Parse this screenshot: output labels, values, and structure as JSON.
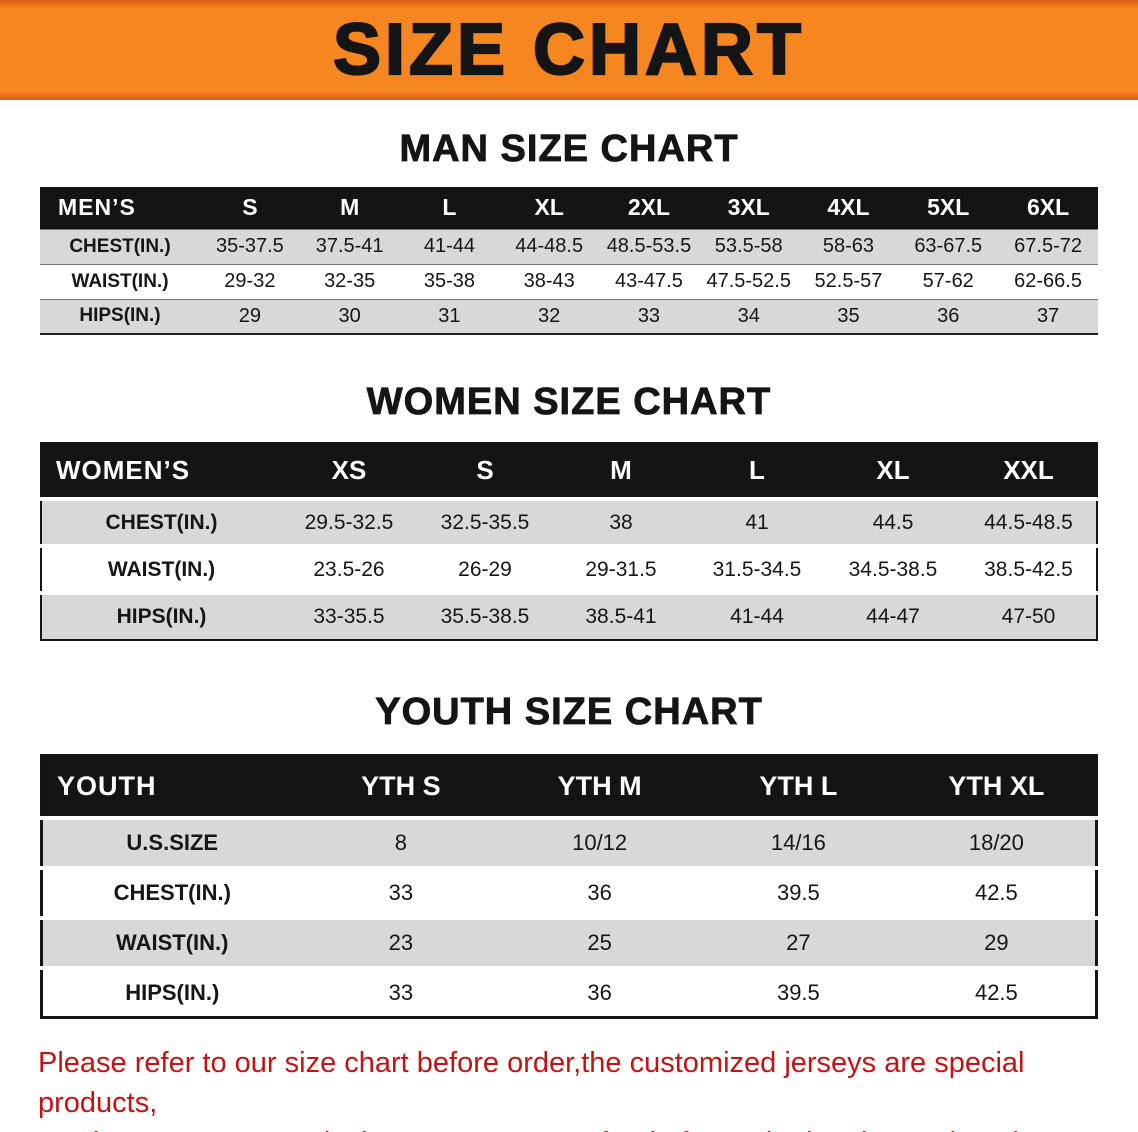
{
  "theme": {
    "banner_orange": "#f6861f",
    "header_black": "#141414",
    "row_gray": "#d8d8d8",
    "disclaimer_red": "#c11414",
    "title_black": "#151515"
  },
  "banner": {
    "title": "SIZE CHART"
  },
  "sections": [
    {
      "id": "men",
      "heading": "MAN SIZE CHART",
      "table": {
        "header_label": "MEN’S",
        "columns": [
          "S",
          "M",
          "L",
          "XL",
          "2XL",
          "3XL",
          "4XL",
          "5XL",
          "6XL"
        ],
        "rows": [
          {
            "label": "CHEST(IN.)",
            "values": [
              "35-37.5",
              "37.5-41",
              "41-44",
              "44-48.5",
              "48.5-53.5",
              "53.5-58",
              "58-63",
              "63-67.5",
              "67.5-72"
            ]
          },
          {
            "label": "WAIST(IN.)",
            "values": [
              "29-32",
              "32-35",
              "35-38",
              "38-43",
              "43-47.5",
              "47.5-52.5",
              "52.5-57",
              "57-62",
              "62-66.5"
            ]
          },
          {
            "label": "HIPS(IN.)",
            "values": [
              "29",
              "30",
              "31",
              "32",
              "33",
              "34",
              "35",
              "36",
              "37"
            ]
          }
        ]
      }
    },
    {
      "id": "women",
      "heading": "WOMEN SIZE CHART",
      "table": {
        "header_label": "WOMEN’S",
        "columns": [
          "XS",
          "S",
          "M",
          "L",
          "XL",
          "XXL"
        ],
        "rows": [
          {
            "label": "CHEST(IN.)",
            "values": [
              "29.5-32.5",
              "32.5-35.5",
              "38",
              "41",
              "44.5",
              "44.5-48.5"
            ]
          },
          {
            "label": "WAIST(IN.)",
            "values": [
              "23.5-26",
              "26-29",
              "29-31.5",
              "31.5-34.5",
              "34.5-38.5",
              "38.5-42.5"
            ]
          },
          {
            "label": "HIPS(IN.)",
            "values": [
              "33-35.5",
              "35.5-38.5",
              "38.5-41",
              "41-44",
              "44-47",
              "47-50"
            ]
          }
        ]
      }
    },
    {
      "id": "youth",
      "heading": "YOUTH SIZE CHART",
      "table": {
        "header_label": "YOUTH",
        "columns": [
          "YTH S",
          "YTH M",
          "YTH L",
          "YTH XL"
        ],
        "rows": [
          {
            "label": "U.S.SIZE",
            "values": [
              "8",
              "10/12",
              "14/16",
              "18/20"
            ]
          },
          {
            "label": "CHEST(IN.)",
            "values": [
              "33",
              "36",
              "39.5",
              "42.5"
            ]
          },
          {
            "label": "WAIST(IN.)",
            "values": [
              "23",
              "25",
              "27",
              "29"
            ]
          },
          {
            "label": "HIPS(IN.)",
            "values": [
              "33",
              "36",
              "39.5",
              "42.5"
            ]
          }
        ]
      }
    }
  ],
  "disclaimer": {
    "line1": "Please refer to our size chart before order,the customized jerseys are special products,",
    "line2": "we don't accept cancel, change, teturn or refund after order has been placed!"
  }
}
